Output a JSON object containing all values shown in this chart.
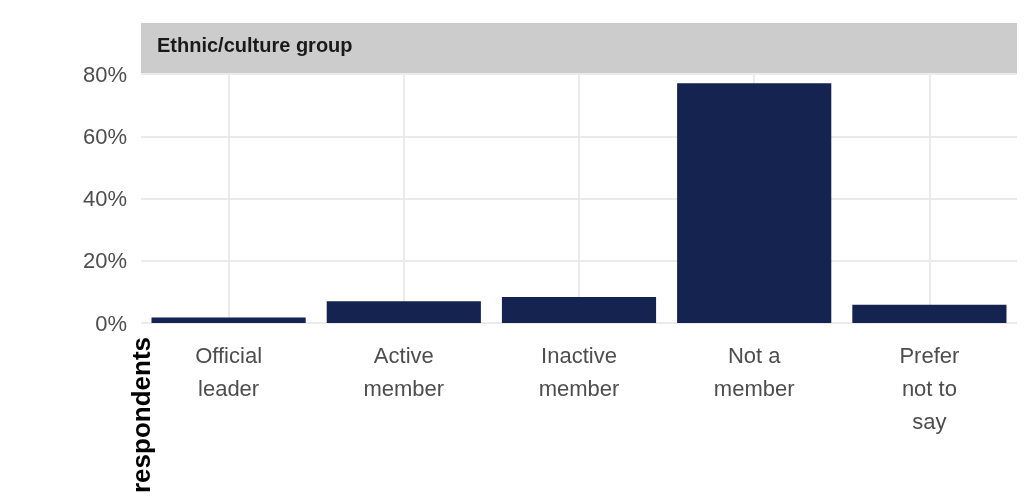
{
  "chart_data": {
    "type": "bar",
    "title": "Ethnic/culture group",
    "ylabel": "respondents",
    "categories": [
      "Official\nleader",
      "Active\nmember",
      "Inactive\nmember",
      "Not a\nmember",
      "Prefer\nnot to\nsay"
    ],
    "values": [
      1.8,
      7.0,
      8.4,
      77.0,
      5.9
    ],
    "color": "#14234f",
    "ylim": [
      0,
      80
    ],
    "yticks": [
      {
        "value": 0,
        "label": "0%"
      },
      {
        "value": 20,
        "label": "20%"
      },
      {
        "value": 40,
        "label": "40%"
      },
      {
        "value": 60,
        "label": "60%"
      },
      {
        "value": 80,
        "label": "80%"
      }
    ],
    "grid": true
  }
}
